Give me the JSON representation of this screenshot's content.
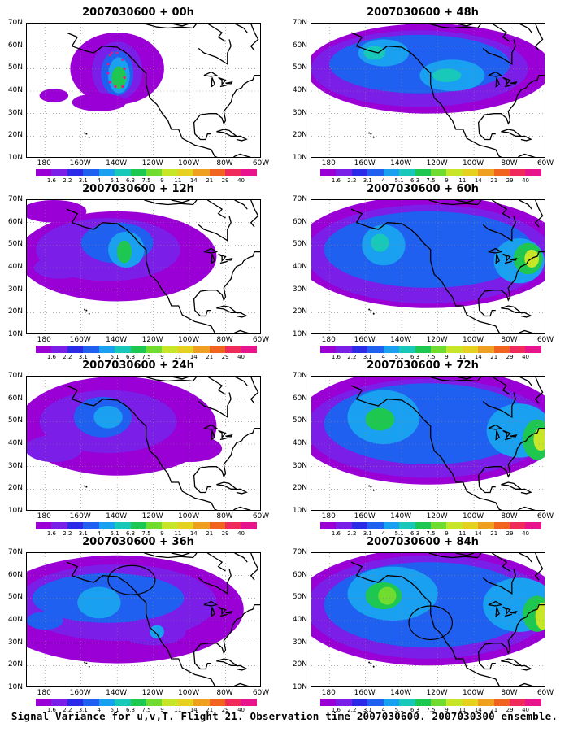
{
  "panels": [
    {
      "title": "2007030600 + 00h"
    },
    {
      "title": "2007030600 + 48h"
    },
    {
      "title": "2007030600 + 12h"
    },
    {
      "title": "2007030600 + 60h"
    },
    {
      "title": "2007030600 + 24h"
    },
    {
      "title": "2007030600 + 72h"
    },
    {
      "title": "2007030600 + 36h"
    },
    {
      "title": "2007030600 + 84h"
    }
  ],
  "axes": {
    "y_labels": [
      "70N",
      "60N",
      "50N",
      "40N",
      "30N",
      "20N",
      "10N"
    ],
    "x_labels": [
      "180",
      "160W",
      "140W",
      "120W",
      "100W",
      "80W",
      "60W"
    ]
  },
  "colorbar": {
    "labels": [
      "1.6",
      "2.2",
      "3.1",
      "4",
      "5.1",
      "6.3",
      "7.5",
      "9",
      "11",
      "14",
      "21",
      "29",
      "40"
    ],
    "colors": [
      "#9a00d6",
      "#7a1ee8",
      "#2a2ae8",
      "#2060f0",
      "#1aa0f0",
      "#18c8b8",
      "#1ec850",
      "#70dc30",
      "#c8e628",
      "#e6d21e",
      "#f0a020",
      "#f06420",
      "#f02a5a",
      "#e8148c"
    ]
  },
  "caption": "Signal Variance for u,v,T. Flight 21. Observation time 2007030600. 2007030300 ensemble."
}
